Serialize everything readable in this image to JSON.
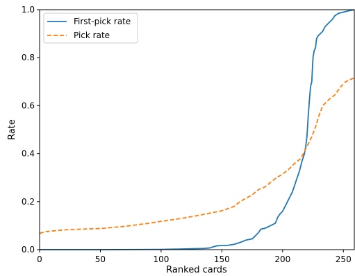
{
  "chart_data": {
    "type": "line",
    "title": "",
    "xlabel": "Ranked cards",
    "ylabel": "Rate",
    "xlim": [
      0,
      259
    ],
    "ylim": [
      0,
      1.0
    ],
    "xticks": [
      0,
      50,
      100,
      150,
      200,
      250
    ],
    "yticks": [
      0.0,
      0.2,
      0.4,
      0.6,
      0.8,
      1.0
    ],
    "ytick_labels": [
      "0.0",
      "0.2",
      "0.4",
      "0.6",
      "0.8",
      "1.0"
    ],
    "grid": false,
    "legend_position": "upper-left",
    "series": [
      {
        "name": "First-pick rate",
        "color": "#1f77b4",
        "style": "solid",
        "points": [
          [
            0,
            0.0
          ],
          [
            50,
            0.0
          ],
          [
            100,
            0.001
          ],
          [
            120,
            0.003
          ],
          [
            135,
            0.005
          ],
          [
            140,
            0.007
          ],
          [
            143,
            0.012
          ],
          [
            146,
            0.016
          ],
          [
            150,
            0.017
          ],
          [
            155,
            0.018
          ],
          [
            160,
            0.022
          ],
          [
            165,
            0.03
          ],
          [
            170,
            0.04
          ],
          [
            175,
            0.045
          ],
          [
            178,
            0.06
          ],
          [
            180,
            0.07
          ],
          [
            182,
            0.085
          ],
          [
            186,
            0.09
          ],
          [
            190,
            0.1
          ],
          [
            194,
            0.11
          ],
          [
            196,
            0.135
          ],
          [
            198,
            0.15
          ],
          [
            200,
            0.16
          ],
          [
            202,
            0.18
          ],
          [
            204,
            0.2
          ],
          [
            206,
            0.22
          ],
          [
            208,
            0.24
          ],
          [
            210,
            0.27
          ],
          [
            212,
            0.3
          ],
          [
            214,
            0.33
          ],
          [
            215,
            0.35
          ],
          [
            216,
            0.37
          ],
          [
            218,
            0.4
          ],
          [
            219,
            0.43
          ],
          [
            220,
            0.47
          ],
          [
            221,
            0.55
          ],
          [
            222,
            0.62
          ],
          [
            223,
            0.68
          ],
          [
            224,
            0.7
          ],
          [
            225,
            0.8
          ],
          [
            226,
            0.83
          ],
          [
            227,
            0.84
          ],
          [
            228,
            0.88
          ],
          [
            229,
            0.89
          ],
          [
            231,
            0.9
          ],
          [
            233,
            0.91
          ],
          [
            235,
            0.93
          ],
          [
            238,
            0.945
          ],
          [
            241,
            0.96
          ],
          [
            243,
            0.975
          ],
          [
            246,
            0.985
          ],
          [
            250,
            0.99
          ],
          [
            254,
            0.995
          ],
          [
            259,
            1.0
          ]
        ]
      },
      {
        "name": "Pick rate",
        "color": "#ff7f0e",
        "style": "dashed",
        "points": [
          [
            0,
            0.068
          ],
          [
            5,
            0.075
          ],
          [
            15,
            0.08
          ],
          [
            25,
            0.084
          ],
          [
            50,
            0.088
          ],
          [
            70,
            0.097
          ],
          [
            90,
            0.11
          ],
          [
            100,
            0.118
          ],
          [
            110,
            0.125
          ],
          [
            120,
            0.133
          ],
          [
            130,
            0.142
          ],
          [
            140,
            0.152
          ],
          [
            150,
            0.162
          ],
          [
            160,
            0.18
          ],
          [
            165,
            0.2
          ],
          [
            170,
            0.215
          ],
          [
            175,
            0.228
          ],
          [
            180,
            0.25
          ],
          [
            185,
            0.26
          ],
          [
            190,
            0.28
          ],
          [
            195,
            0.3
          ],
          [
            200,
            0.315
          ],
          [
            205,
            0.335
          ],
          [
            210,
            0.36
          ],
          [
            215,
            0.38
          ],
          [
            220,
            0.43
          ],
          [
            224,
            0.47
          ],
          [
            227,
            0.51
          ],
          [
            230,
            0.56
          ],
          [
            233,
            0.6
          ],
          [
            238,
            0.625
          ],
          [
            243,
            0.645
          ],
          [
            248,
            0.68
          ],
          [
            252,
            0.7
          ],
          [
            256,
            0.71
          ],
          [
            259,
            0.715
          ]
        ]
      }
    ]
  }
}
